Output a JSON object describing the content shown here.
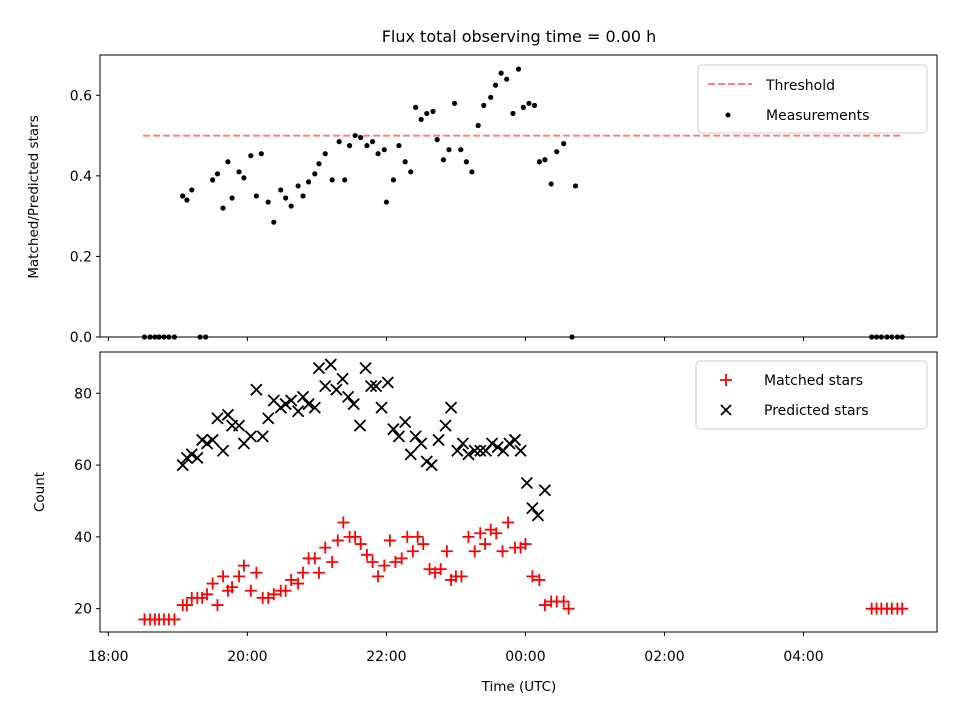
{
  "chart_data": [
    {
      "type": "scatter",
      "title": "Flux total observing time = 0.00 h",
      "xlabel": "",
      "ylabel": "Matched/Predicted stars",
      "x_unit": "hours (18:00 = 18, 00:00 = 24, 04:00 = 28)",
      "xlim": [
        17.88,
        29.92
      ],
      "ylim": [
        0,
        0.7
      ],
      "yticks": [
        "0.0",
        "0.2",
        "0.4",
        "0.6"
      ],
      "ytick_values": [
        0,
        0.2,
        0.4,
        0.6
      ],
      "legend_position": "top-right",
      "threshold": {
        "name": "Threshold",
        "value": 0.5,
        "x_range": [
          18.5,
          29.4
        ],
        "color": "#ff7f7f"
      },
      "series": [
        {
          "name": "Measurements",
          "color": "#000000",
          "points": [
            [
              18.52,
              0.0
            ],
            [
              18.6,
              0.0
            ],
            [
              18.67,
              0.0
            ],
            [
              18.73,
              0.0
            ],
            [
              18.8,
              0.0
            ],
            [
              18.87,
              0.0
            ],
            [
              18.95,
              0.0
            ],
            [
              19.32,
              0.0
            ],
            [
              19.4,
              0.0
            ],
            [
              19.07,
              0.35
            ],
            [
              19.13,
              0.34
            ],
            [
              19.2,
              0.365
            ],
            [
              19.5,
              0.39
            ],
            [
              19.57,
              0.405
            ],
            [
              19.65,
              0.32
            ],
            [
              19.72,
              0.435
            ],
            [
              19.78,
              0.345
            ],
            [
              19.88,
              0.41
            ],
            [
              19.95,
              0.395
            ],
            [
              20.05,
              0.45
            ],
            [
              20.13,
              0.35
            ],
            [
              20.2,
              0.455
            ],
            [
              20.3,
              0.335
            ],
            [
              20.38,
              0.285
            ],
            [
              20.48,
              0.365
            ],
            [
              20.55,
              0.345
            ],
            [
              20.63,
              0.325
            ],
            [
              20.73,
              0.375
            ],
            [
              20.8,
              0.35
            ],
            [
              20.88,
              0.385
            ],
            [
              20.97,
              0.405
            ],
            [
              21.03,
              0.43
            ],
            [
              21.12,
              0.455
            ],
            [
              21.22,
              0.39
            ],
            [
              21.32,
              0.485
            ],
            [
              21.4,
              0.39
            ],
            [
              21.47,
              0.475
            ],
            [
              21.55,
              0.5
            ],
            [
              21.63,
              0.495
            ],
            [
              21.72,
              0.475
            ],
            [
              21.8,
              0.485
            ],
            [
              21.88,
              0.455
            ],
            [
              21.97,
              0.465
            ],
            [
              22.0,
              0.335
            ],
            [
              22.1,
              0.39
            ],
            [
              22.18,
              0.475
            ],
            [
              22.27,
              0.435
            ],
            [
              22.35,
              0.41
            ],
            [
              22.42,
              0.57
            ],
            [
              22.5,
              0.54
            ],
            [
              22.58,
              0.555
            ],
            [
              22.67,
              0.56
            ],
            [
              22.73,
              0.49
            ],
            [
              22.82,
              0.44
            ],
            [
              22.9,
              0.465
            ],
            [
              22.98,
              0.58
            ],
            [
              23.07,
              0.465
            ],
            [
              23.15,
              0.435
            ],
            [
              23.23,
              0.41
            ],
            [
              23.32,
              0.525
            ],
            [
              23.4,
              0.575
            ],
            [
              23.5,
              0.595
            ],
            [
              23.57,
              0.625
            ],
            [
              23.65,
              0.655
            ],
            [
              23.73,
              0.64
            ],
            [
              23.82,
              0.555
            ],
            [
              23.9,
              0.665
            ],
            [
              23.97,
              0.57
            ],
            [
              24.05,
              0.58
            ],
            [
              24.13,
              0.575
            ],
            [
              24.2,
              0.435
            ],
            [
              24.28,
              0.44
            ],
            [
              24.37,
              0.38
            ],
            [
              24.45,
              0.46
            ],
            [
              24.55,
              0.48
            ],
            [
              24.67,
              0.0
            ],
            [
              24.72,
              0.375
            ],
            [
              28.98,
              0.0
            ],
            [
              29.05,
              0.0
            ],
            [
              29.12,
              0.0
            ],
            [
              29.2,
              0.0
            ],
            [
              29.27,
              0.0
            ],
            [
              29.35,
              0.0
            ],
            [
              29.42,
              0.0
            ]
          ]
        }
      ]
    },
    {
      "type": "scatter",
      "title": "",
      "xlabel": "Time (UTC)",
      "ylabel": "Count",
      "x_unit": "hours (18:00 = 18, 00:00 = 24, 04:00 = 28)",
      "xlim": [
        17.88,
        29.92
      ],
      "ylim": [
        13.5,
        91.5
      ],
      "yticks": [
        "20",
        "40",
        "60",
        "80"
      ],
      "ytick_values": [
        20,
        40,
        60,
        80
      ],
      "xticks": [
        "18:00",
        "20:00",
        "22:00",
        "00:00",
        "02:00",
        "04:00"
      ],
      "xtick_values": [
        18,
        20,
        22,
        24,
        26,
        28
      ],
      "legend_position": "top-right",
      "series": [
        {
          "name": "Matched stars",
          "marker": "plus",
          "color": "#ff0000",
          "points": [
            [
              18.52,
              17
            ],
            [
              18.6,
              17
            ],
            [
              18.67,
              17
            ],
            [
              18.73,
              17
            ],
            [
              18.8,
              17
            ],
            [
              18.87,
              17
            ],
            [
              18.95,
              17
            ],
            [
              19.07,
              21
            ],
            [
              19.13,
              21
            ],
            [
              19.2,
              23
            ],
            [
              19.28,
              23
            ],
            [
              19.35,
              23
            ],
            [
              19.42,
              24
            ],
            [
              19.5,
              27
            ],
            [
              19.57,
              21
            ],
            [
              19.65,
              29
            ],
            [
              19.72,
              25
            ],
            [
              19.78,
              26
            ],
            [
              19.88,
              29
            ],
            [
              19.95,
              32
            ],
            [
              20.05,
              25
            ],
            [
              20.13,
              30
            ],
            [
              20.22,
              23
            ],
            [
              20.3,
              23
            ],
            [
              20.38,
              24
            ],
            [
              20.48,
              25
            ],
            [
              20.55,
              25
            ],
            [
              20.63,
              28
            ],
            [
              20.73,
              27
            ],
            [
              20.8,
              30
            ],
            [
              20.88,
              34
            ],
            [
              20.97,
              34
            ],
            [
              21.03,
              30
            ],
            [
              21.12,
              37
            ],
            [
              21.22,
              33
            ],
            [
              21.3,
              39
            ],
            [
              21.38,
              44
            ],
            [
              21.47,
              40
            ],
            [
              21.55,
              40
            ],
            [
              21.63,
              38
            ],
            [
              21.72,
              35
            ],
            [
              21.8,
              33
            ],
            [
              21.88,
              29
            ],
            [
              21.97,
              32
            ],
            [
              22.05,
              39
            ],
            [
              22.13,
              33
            ],
            [
              22.22,
              34
            ],
            [
              22.3,
              40
            ],
            [
              22.38,
              36
            ],
            [
              22.45,
              40
            ],
            [
              22.53,
              38
            ],
            [
              22.62,
              31
            ],
            [
              22.7,
              30
            ],
            [
              22.78,
              31
            ],
            [
              22.87,
              36
            ],
            [
              22.93,
              28
            ],
            [
              23.0,
              29
            ],
            [
              23.08,
              29
            ],
            [
              23.18,
              40
            ],
            [
              23.27,
              36
            ],
            [
              23.35,
              41
            ],
            [
              23.42,
              38
            ],
            [
              23.5,
              42
            ],
            [
              23.58,
              41
            ],
            [
              23.67,
              36
            ],
            [
              23.75,
              44
            ],
            [
              23.85,
              37
            ],
            [
              23.93,
              37
            ],
            [
              24.0,
              38
            ],
            [
              24.1,
              29
            ],
            [
              24.2,
              28
            ],
            [
              24.28,
              21
            ],
            [
              24.37,
              22
            ],
            [
              24.45,
              22
            ],
            [
              24.55,
              22
            ],
            [
              24.62,
              20
            ],
            [
              28.98,
              20
            ],
            [
              29.05,
              20
            ],
            [
              29.12,
              20
            ],
            [
              29.2,
              20
            ],
            [
              29.27,
              20
            ],
            [
              29.35,
              20
            ],
            [
              29.42,
              20
            ]
          ]
        },
        {
          "name": "Predicted stars",
          "marker": "x",
          "color": "#000000",
          "points": [
            [
              19.07,
              60
            ],
            [
              19.13,
              62
            ],
            [
              19.2,
              63
            ],
            [
              19.28,
              62
            ],
            [
              19.35,
              67
            ],
            [
              19.42,
              66
            ],
            [
              19.5,
              67
            ],
            [
              19.57,
              73
            ],
            [
              19.65,
              64
            ],
            [
              19.72,
              74
            ],
            [
              19.78,
              71
            ],
            [
              19.88,
              71
            ],
            [
              19.95,
              66
            ],
            [
              20.05,
              68
            ],
            [
              20.13,
              81
            ],
            [
              20.22,
              68
            ],
            [
              20.3,
              73
            ],
            [
              20.38,
              78
            ],
            [
              20.48,
              76
            ],
            [
              20.55,
              77
            ],
            [
              20.63,
              78
            ],
            [
              20.73,
              75
            ],
            [
              20.8,
              79
            ],
            [
              20.88,
              77
            ],
            [
              20.97,
              76
            ],
            [
              21.03,
              87
            ],
            [
              21.12,
              82
            ],
            [
              21.2,
              88
            ],
            [
              21.28,
              81
            ],
            [
              21.37,
              84
            ],
            [
              21.45,
              79
            ],
            [
              21.53,
              77
            ],
            [
              21.62,
              71
            ],
            [
              21.7,
              87
            ],
            [
              21.78,
              82
            ],
            [
              21.85,
              82
            ],
            [
              21.93,
              76
            ],
            [
              22.02,
              83
            ],
            [
              22.1,
              70
            ],
            [
              22.18,
              68
            ],
            [
              22.27,
              72
            ],
            [
              22.35,
              63
            ],
            [
              22.42,
              68
            ],
            [
              22.5,
              66
            ],
            [
              22.58,
              61
            ],
            [
              22.65,
              60
            ],
            [
              22.75,
              67
            ],
            [
              22.85,
              71
            ],
            [
              22.93,
              76
            ],
            [
              23.02,
              64
            ],
            [
              23.1,
              66
            ],
            [
              23.18,
              63
            ],
            [
              23.27,
              64
            ],
            [
              23.35,
              64
            ],
            [
              23.43,
              64
            ],
            [
              23.52,
              66
            ],
            [
              23.6,
              65
            ],
            [
              23.68,
              64
            ],
            [
              23.77,
              66
            ],
            [
              23.85,
              67
            ],
            [
              23.93,
              64
            ],
            [
              24.02,
              55
            ],
            [
              24.1,
              48
            ],
            [
              24.18,
              46
            ],
            [
              24.28,
              53
            ]
          ]
        }
      ]
    }
  ]
}
